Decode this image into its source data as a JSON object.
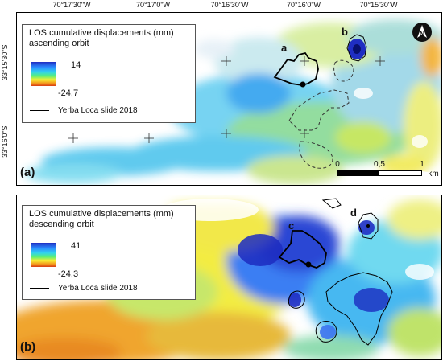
{
  "top_coordinates": [
    "70°17'30\"W",
    "70°17'0\"W",
    "70°16'30\"W",
    "70°16'0\"W",
    "70°15'30\"W"
  ],
  "left_coordinates": [
    "33°15'30\"S",
    "33°16'0\"S"
  ],
  "panel_a": {
    "label": "(a)",
    "legend": {
      "title_line1": "LOS cumulative displacements (mm)",
      "title_line2": "ascending orbit",
      "max": "14",
      "min": "-24,7",
      "outline_label": "Yerba Loca slide 2018"
    },
    "slide_labels": [
      "a",
      "b"
    ],
    "scale": {
      "ticks": [
        "0",
        "0,5",
        "1"
      ],
      "unit": "km"
    }
  },
  "panel_b": {
    "label": "(b)",
    "legend": {
      "title_line1": "LOS cumulative displacements (mm)",
      "title_line2": "descending orbit",
      "max": "41",
      "min": "-24,3",
      "outline_label": "Yerba Loca slide 2018"
    },
    "slide_labels": [
      "c",
      "d"
    ]
  },
  "north_arrow": {
    "icon": "north-arrow-icon",
    "letter": "N"
  },
  "colors": {
    "high": "#1f2ec2",
    "mid": "#f6ee34",
    "low": "#d93d11",
    "outline": "#000000"
  }
}
